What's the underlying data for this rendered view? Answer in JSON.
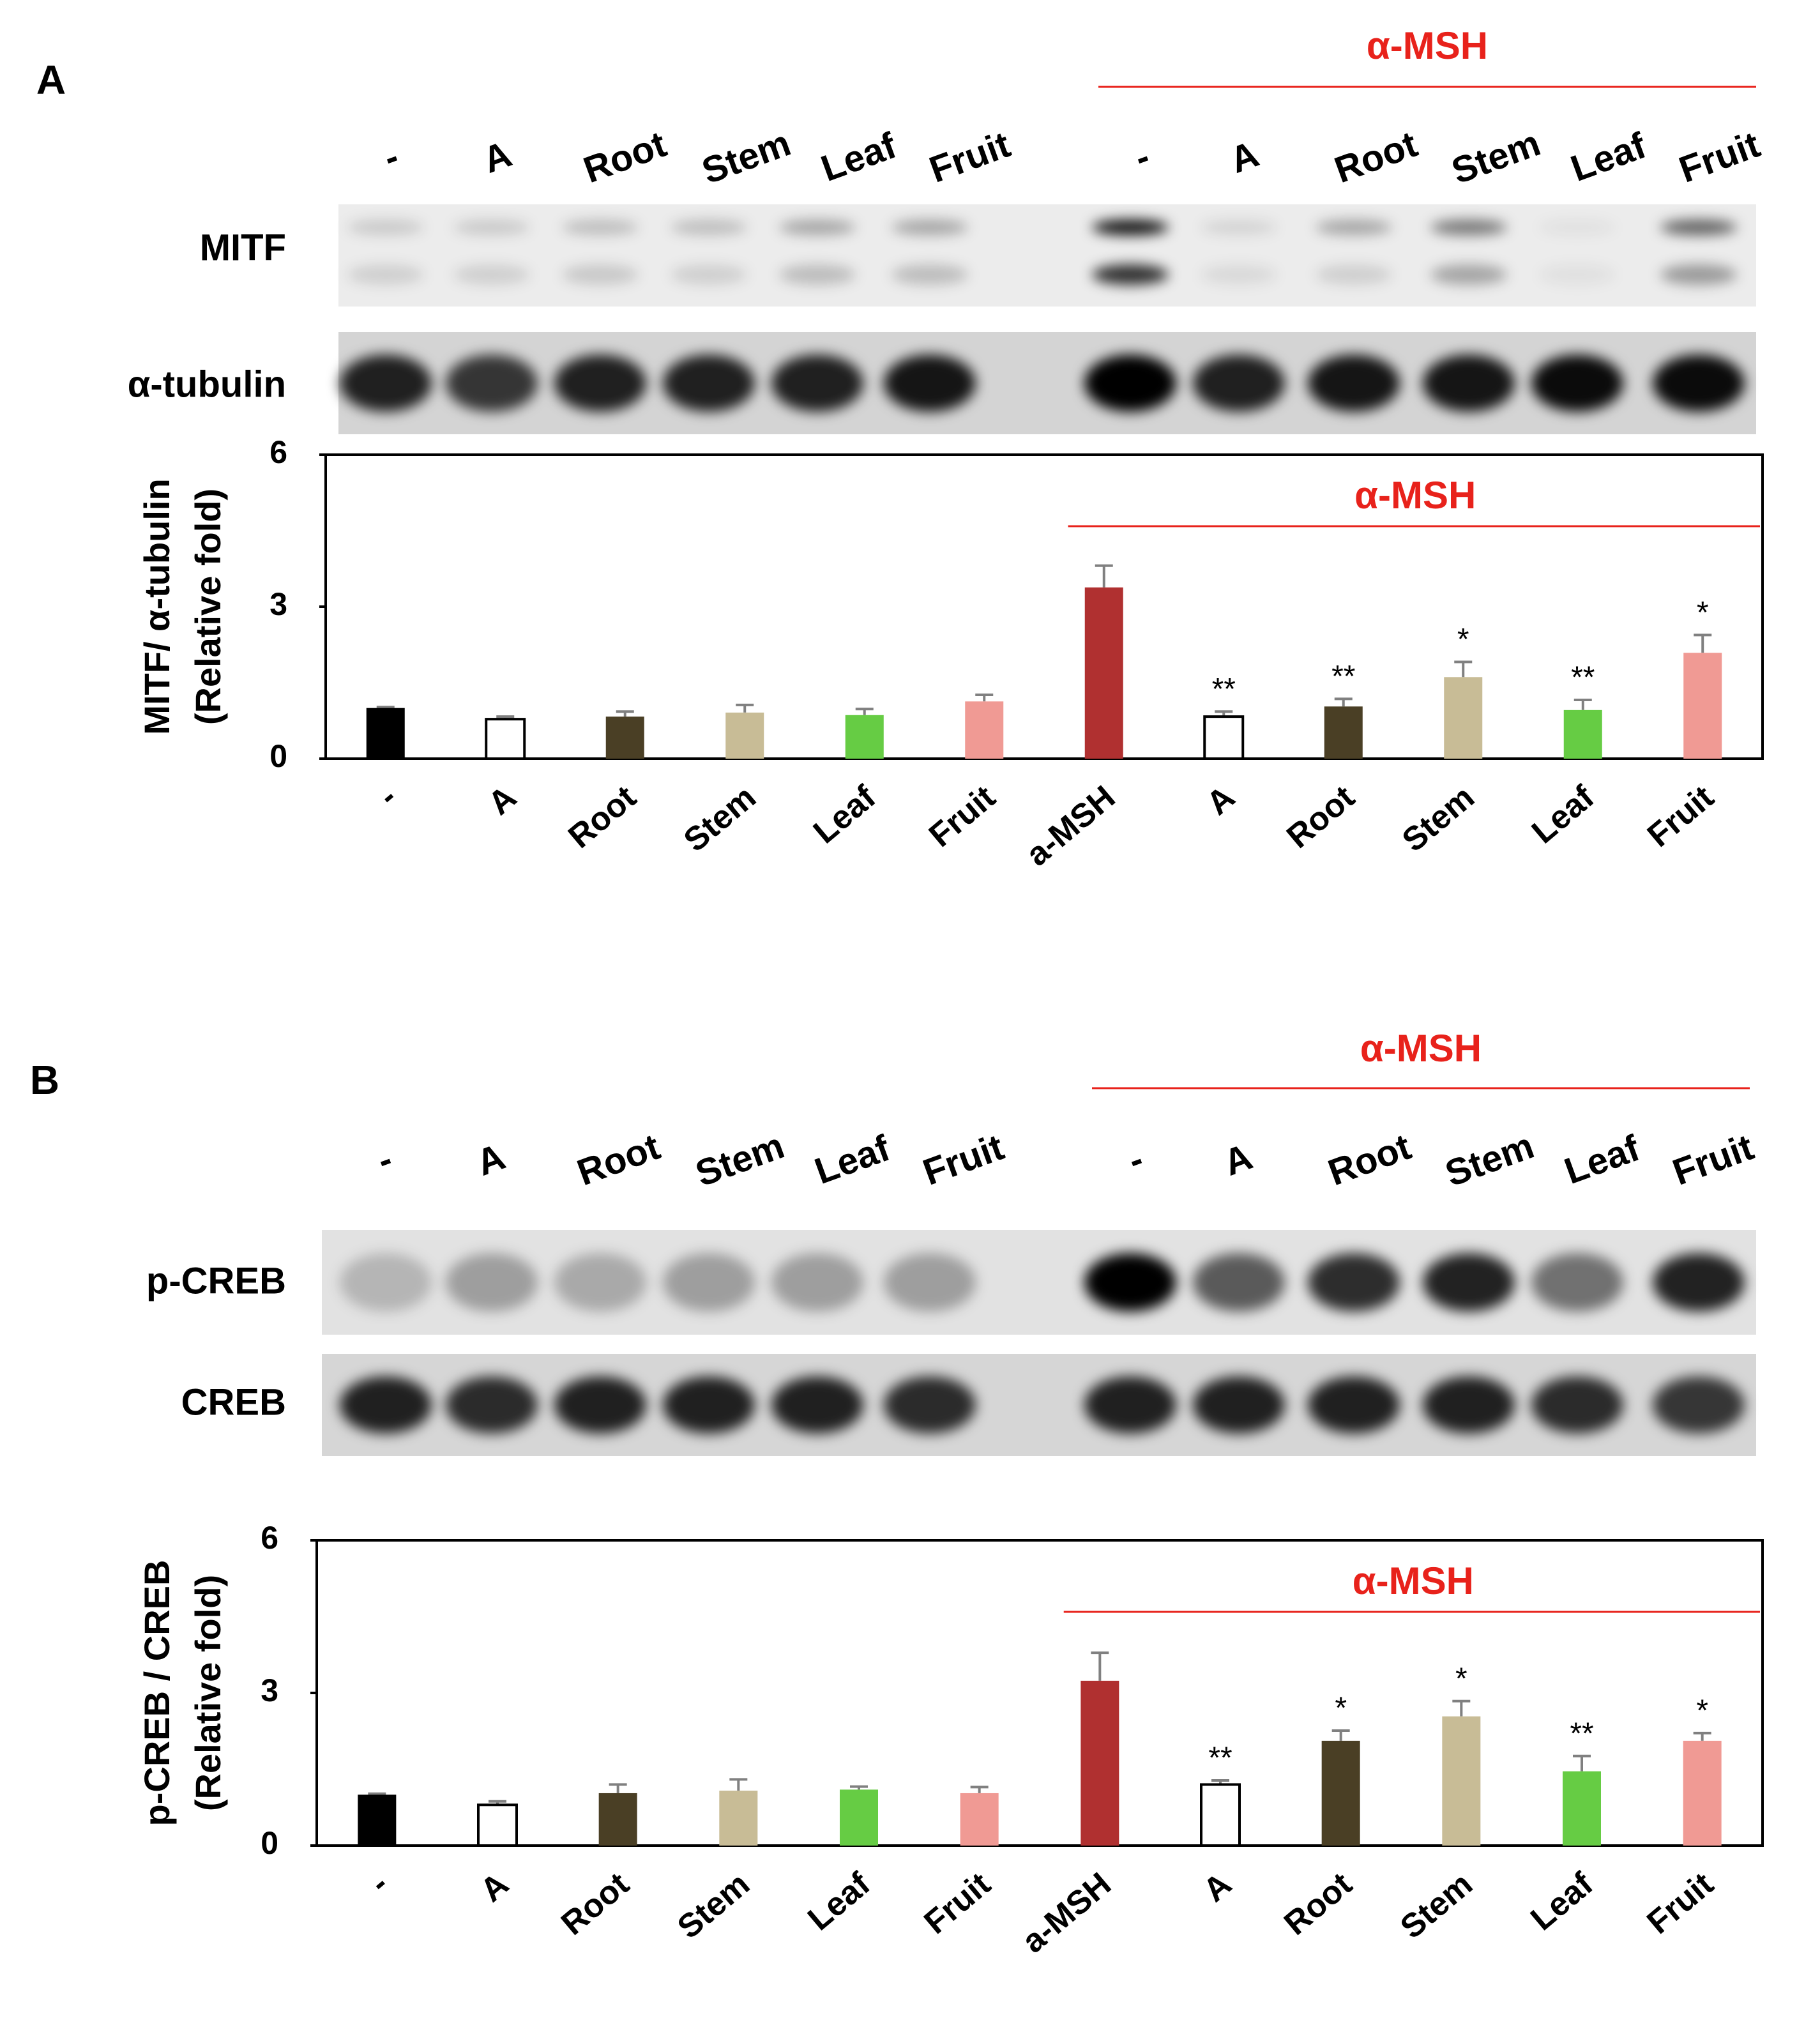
{
  "panels": [
    {
      "label": "A",
      "group_label": "α-MSH",
      "lanes": [
        "-",
        "A",
        "Root",
        "Stem",
        "Leaf",
        "Fruit",
        "-",
        "A",
        "Root",
        "Stem",
        "Leaf",
        "Fruit"
      ],
      "rows": [
        "MITF",
        "α-tubulin"
      ]
    },
    {
      "label": "B",
      "group_label": "α-MSH",
      "lanes": [
        "-",
        "A",
        "Root",
        "Stem",
        "Leaf",
        "Fruit",
        "-",
        "A",
        "Root",
        "Stem",
        "Leaf",
        "Fruit"
      ],
      "rows": [
        "p-CREB",
        "CREB"
      ]
    }
  ],
  "chart_data": [
    {
      "type": "bar",
      "ylabel": [
        "MITF/ α-tubulin",
        "(Relative fold)"
      ],
      "group_label": "α-MSH",
      "categories": [
        "-",
        "A",
        "Root",
        "Stem",
        "Leaf",
        "Fruit",
        "a-MSH",
        "A",
        "Root",
        "Stem",
        "Leaf",
        "Fruit"
      ],
      "values": [
        1.0,
        0.78,
        0.83,
        0.91,
        0.86,
        1.13,
        3.38,
        0.83,
        1.03,
        1.61,
        0.96,
        2.09
      ],
      "errors": [
        0.02,
        0.05,
        0.1,
        0.15,
        0.12,
        0.13,
        0.43,
        0.1,
        0.15,
        0.3,
        0.2,
        0.35
      ],
      "colors": [
        "#000000",
        "#ffffff",
        "#4a3f25",
        "#c8bc96",
        "#66cc44",
        "#f09a94",
        "#b03030",
        "#ffffff",
        "#4a3f25",
        "#c8bc96",
        "#66cc44",
        "#f09a94"
      ],
      "annotations": [
        null,
        null,
        null,
        null,
        null,
        null,
        null,
        "**",
        "**",
        "*",
        "**",
        "*"
      ],
      "ylim": [
        0,
        6
      ],
      "yticks": [
        0,
        3,
        6
      ]
    },
    {
      "type": "bar",
      "ylabel": [
        "p-CREB / CREB",
        "(Relative fold)"
      ],
      "group_label": "α-MSH",
      "categories": [
        "-",
        "A",
        "Root",
        "Stem",
        "Leaf",
        "Fruit",
        "a-MSH",
        "A",
        "Root",
        "Stem",
        "Leaf",
        "Fruit"
      ],
      "values": [
        1.0,
        0.8,
        1.03,
        1.08,
        1.1,
        1.03,
        3.24,
        1.2,
        2.06,
        2.54,
        1.46,
        2.06
      ],
      "errors": [
        0.02,
        0.07,
        0.17,
        0.22,
        0.06,
        0.12,
        0.55,
        0.08,
        0.2,
        0.3,
        0.3,
        0.15
      ],
      "colors": [
        "#000000",
        "#ffffff",
        "#4a3f25",
        "#c8bc96",
        "#66cc44",
        "#f09a94",
        "#b03030",
        "#ffffff",
        "#4a3f25",
        "#c8bc96",
        "#66cc44",
        "#f09a94"
      ],
      "annotations": [
        null,
        null,
        null,
        null,
        null,
        null,
        null,
        "**",
        "*",
        "*",
        "**",
        "*"
      ],
      "ylim": [
        0,
        6
      ],
      "yticks": [
        0,
        3,
        6
      ]
    }
  ]
}
